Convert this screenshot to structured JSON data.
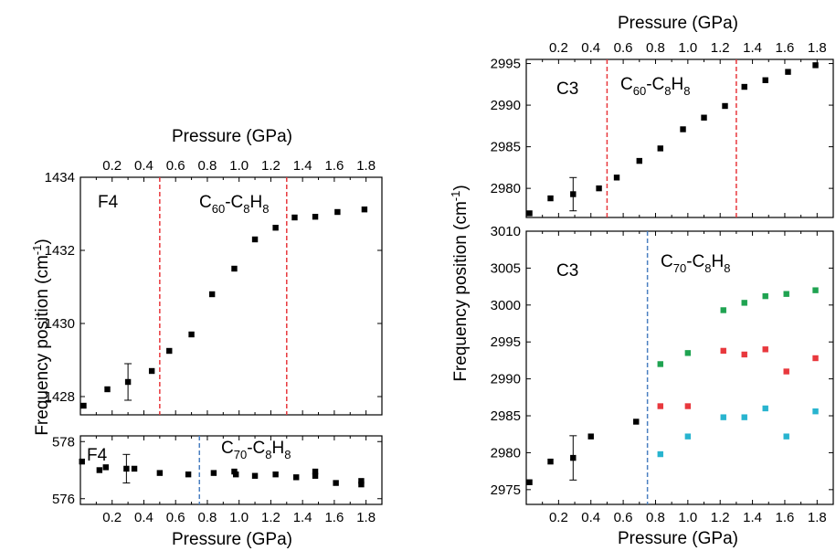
{
  "chart_data": [
    {
      "id": "F4-C60",
      "type": "scatter",
      "panel_label": "F4",
      "compound": {
        "parts": [
          "C",
          "60",
          "-C",
          "8",
          "H",
          "8"
        ]
      },
      "xlabel": "Pressure (GPa)",
      "xlim": [
        0.0,
        1.9
      ],
      "xticks": [
        0.2,
        0.4,
        0.6,
        0.8,
        1.0,
        1.2,
        1.4,
        1.6,
        1.8
      ],
      "xtick_labels": [
        "0.2",
        "0.4",
        "0.6",
        "0.8",
        "1.0",
        "1.2",
        "1.4",
        "1.6",
        "1.8"
      ],
      "ylim": [
        1427.5,
        1434
      ],
      "yticks": [
        1428,
        1430,
        1432,
        1434
      ],
      "ytick_labels": [
        "1428",
        "1430",
        "1432",
        "1434"
      ],
      "vlines": [
        {
          "x": 0.5,
          "color": "#e8383d"
        },
        {
          "x": 1.3,
          "color": "#e8383d"
        }
      ],
      "series": [
        {
          "color": "#000000",
          "points": [
            [
              0.02,
              1427.75
            ],
            [
              0.17,
              1428.2
            ],
            [
              0.3,
              1428.4
            ],
            [
              0.45,
              1428.7
            ],
            [
              0.56,
              1429.25
            ],
            [
              0.7,
              1429.7
            ],
            [
              0.83,
              1430.8
            ],
            [
              0.97,
              1431.5
            ],
            [
              1.1,
              1432.3
            ],
            [
              1.23,
              1432.62
            ],
            [
              1.35,
              1432.9
            ],
            [
              1.48,
              1432.92
            ],
            [
              1.62,
              1433.05
            ],
            [
              1.79,
              1433.12
            ]
          ],
          "errors": [
            {
              "x": 0.3,
              "y": 1428.4,
              "err": 0.5
            }
          ]
        }
      ]
    },
    {
      "id": "F4-C70",
      "type": "scatter",
      "panel_label": "F4",
      "compound": {
        "parts": [
          "C",
          "70",
          "-C",
          "8",
          "H",
          "8"
        ]
      },
      "xlabel": "Pressure (GPa)",
      "xlim": [
        0.0,
        1.9
      ],
      "xticks": [
        0.2,
        0.4,
        0.6,
        0.8,
        1.0,
        1.2,
        1.4,
        1.6,
        1.8
      ],
      "xtick_labels": [
        "0.2",
        "0.4",
        "0.6",
        "0.8",
        "1.0",
        "1.2",
        "1.4",
        "1.6",
        "1.8"
      ],
      "ylim": [
        575.8,
        578.2
      ],
      "yticks": [
        576,
        578
      ],
      "ytick_labels": [
        "576",
        "578"
      ],
      "vlines": [
        {
          "x": 0.75,
          "color": "#4a7fc1"
        }
      ],
      "series": [
        {
          "color": "#000000",
          "points": [
            [
              0.01,
              577.3
            ],
            [
              0.12,
              577.0
            ],
            [
              0.16,
              577.1
            ],
            [
              0.29,
              577.05
            ],
            [
              0.34,
              577.05
            ],
            [
              0.5,
              576.9
            ],
            [
              0.68,
              576.85
            ],
            [
              0.84,
              576.9
            ],
            [
              0.97,
              576.95
            ],
            [
              0.98,
              576.85
            ],
            [
              1.1,
              576.8
            ],
            [
              1.23,
              576.85
            ],
            [
              1.36,
              576.75
            ],
            [
              1.48,
              576.95
            ],
            [
              1.48,
              576.8
            ],
            [
              1.61,
              576.55
            ],
            [
              1.77,
              576.5
            ],
            [
              1.77,
              576.62
            ]
          ],
          "errors": [
            {
              "x": 0.29,
              "y": 577.05,
              "err": 0.5
            }
          ]
        }
      ]
    },
    {
      "id": "C3-C60",
      "type": "scatter",
      "panel_label": "C3",
      "compound": {
        "parts": [
          "C",
          "60",
          "-C",
          "8",
          "H",
          "8"
        ]
      },
      "xlabel": "Pressure (GPa)",
      "xlim": [
        0.0,
        1.9
      ],
      "xticks": [
        0.2,
        0.4,
        0.6,
        0.8,
        1.0,
        1.2,
        1.4,
        1.6,
        1.8
      ],
      "xtick_labels": [
        "0.2",
        "0.4",
        "0.6",
        "0.8",
        "1.0",
        "1.2",
        "1.4",
        "1.6",
        "1.8"
      ],
      "ylim": [
        2976.5,
        2995.5
      ],
      "yticks": [
        2980,
        2985,
        2990,
        2995
      ],
      "ytick_labels": [
        "2980",
        "2985",
        "2990",
        "2995"
      ],
      "vlines": [
        {
          "x": 0.5,
          "color": "#e8383d"
        },
        {
          "x": 1.3,
          "color": "#e8383d"
        }
      ],
      "series": [
        {
          "color": "#000000",
          "points": [
            [
              0.02,
              2977.0
            ],
            [
              0.15,
              2978.8
            ],
            [
              0.29,
              2979.3
            ],
            [
              0.45,
              2980.0
            ],
            [
              0.56,
              2981.3
            ],
            [
              0.7,
              2983.3
            ],
            [
              0.83,
              2984.8
            ],
            [
              0.97,
              2987.1
            ],
            [
              1.1,
              2988.5
            ],
            [
              1.23,
              2989.9
            ],
            [
              1.35,
              2992.2
            ],
            [
              1.48,
              2993.0
            ],
            [
              1.62,
              2994.0
            ],
            [
              1.79,
              2994.8
            ]
          ],
          "errors": [
            {
              "x": 0.29,
              "y": 2979.3,
              "err": 2.0
            }
          ]
        }
      ]
    },
    {
      "id": "C3-C70",
      "type": "scatter",
      "panel_label": "C3",
      "compound": {
        "parts": [
          "C",
          "70",
          "-C",
          "8",
          "H",
          "8"
        ]
      },
      "xlabel": "Pressure (GPa)",
      "xlim": [
        0.0,
        1.9
      ],
      "xticks": [
        0.2,
        0.4,
        0.6,
        0.8,
        1.0,
        1.2,
        1.4,
        1.6,
        1.8
      ],
      "xtick_labels": [
        "0.2",
        "0.4",
        "0.6",
        "0.8",
        "1.0",
        "1.2",
        "1.4",
        "1.6",
        "1.8"
      ],
      "ylim": [
        2973,
        3010
      ],
      "yticks": [
        2975,
        2980,
        2985,
        2990,
        2995,
        3000,
        3005,
        3010
      ],
      "ytick_labels": [
        "2975",
        "2980",
        "2985",
        "2990",
        "2995",
        "3000",
        "3005",
        "3010"
      ],
      "vlines": [
        {
          "x": 0.75,
          "color": "#4a7fc1"
        }
      ],
      "series": [
        {
          "color": "#000000",
          "points": [
            [
              0.02,
              2976.0
            ],
            [
              0.15,
              2978.8
            ],
            [
              0.29,
              2979.3
            ],
            [
              0.4,
              2982.2
            ],
            [
              0.68,
              2984.2
            ]
          ],
          "errors": [
            {
              "x": 0.29,
              "y": 2979.3,
              "err": 3.0
            }
          ]
        },
        {
          "color": "#1fa351",
          "points": [
            [
              0.83,
              2992.0
            ],
            [
              1.0,
              2993.5
            ],
            [
              1.22,
              2999.3
            ],
            [
              1.35,
              3000.3
            ],
            [
              1.48,
              3001.2
            ],
            [
              1.61,
              3001.5
            ],
            [
              1.79,
              3002.0
            ]
          ],
          "errors": []
        },
        {
          "color": "#e8383d",
          "points": [
            [
              0.83,
              2986.3
            ],
            [
              1.0,
              2986.3
            ],
            [
              1.22,
              2993.8
            ],
            [
              1.35,
              2993.3
            ],
            [
              1.48,
              2994.0
            ],
            [
              1.61,
              2991.0
            ],
            [
              1.79,
              2992.8
            ]
          ],
          "errors": []
        },
        {
          "color": "#28b4cf",
          "points": [
            [
              0.83,
              2979.8
            ],
            [
              1.0,
              2982.2
            ],
            [
              1.22,
              2984.8
            ],
            [
              1.35,
              2984.8
            ],
            [
              1.48,
              2986.0
            ],
            [
              1.61,
              2982.2
            ],
            [
              1.79,
              2985.6
            ]
          ],
          "errors": []
        }
      ]
    }
  ],
  "labels": {
    "pressure_label": "Pressure (GPa)",
    "frequency_label": "Frequency  position (cm",
    "frequency_unit_sup": "-1",
    "frequency_label_end": ")"
  }
}
